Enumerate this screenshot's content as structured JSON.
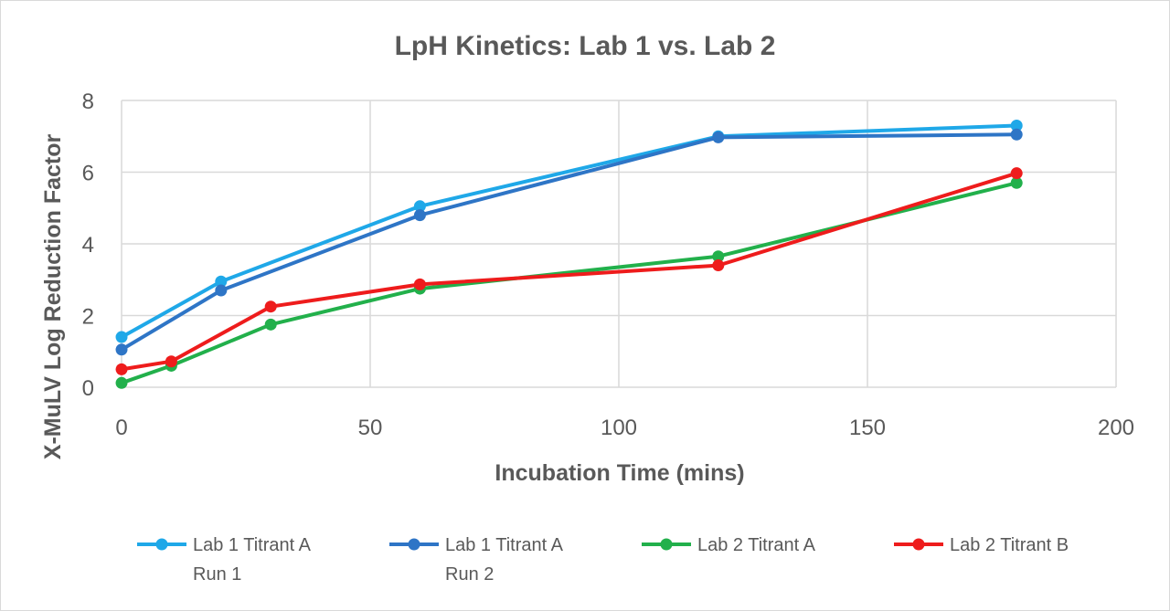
{
  "chart_data": {
    "type": "line",
    "title": "LpH Kinetics:  Lab 1 vs. Lab 2",
    "xlabel": "Incubation Time (mins)",
    "ylabel": "X-MuLV Log Reduction Factor",
    "xlim": [
      0,
      200
    ],
    "ylim": [
      0,
      8
    ],
    "x_ticks": [
      0,
      50,
      100,
      150,
      200
    ],
    "y_ticks": [
      0,
      2,
      4,
      6,
      8
    ],
    "grid": true,
    "legend_position": "bottom",
    "series": [
      {
        "name_lines": [
          "Lab 1 Titrant A",
          "Run 1"
        ],
        "color": "#1FA8E8",
        "points": [
          [
            0,
            1.4
          ],
          [
            20,
            2.95
          ],
          [
            60,
            5.05
          ],
          [
            120,
            7.0
          ],
          [
            180,
            7.3
          ]
        ]
      },
      {
        "name_lines": [
          "Lab 1 Titrant A",
          "Run 2"
        ],
        "color": "#2E75C6",
        "points": [
          [
            0,
            1.05
          ],
          [
            20,
            2.7
          ],
          [
            60,
            4.8
          ],
          [
            120,
            6.97
          ],
          [
            180,
            7.05
          ]
        ]
      },
      {
        "name_lines": [
          "Lab 2 Titrant A"
        ],
        "color": "#22B04B",
        "points": [
          [
            0,
            0.12
          ],
          [
            10,
            0.6
          ],
          [
            30,
            1.75
          ],
          [
            60,
            2.75
          ],
          [
            120,
            3.65
          ],
          [
            180,
            5.7
          ]
        ]
      },
      {
        "name_lines": [
          "Lab 2 Titrant B"
        ],
        "color": "#EE1C1C",
        "points": [
          [
            0,
            0.5
          ],
          [
            10,
            0.72
          ],
          [
            30,
            2.25
          ],
          [
            60,
            2.87
          ],
          [
            120,
            3.4
          ],
          [
            180,
            5.97
          ]
        ]
      }
    ]
  }
}
